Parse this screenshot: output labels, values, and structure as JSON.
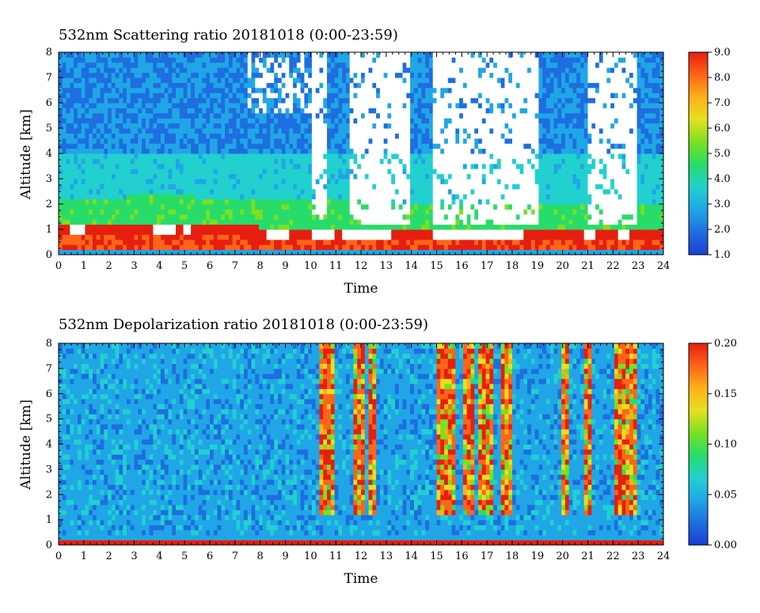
{
  "colors": {
    "scale": [
      "#1a3fd6",
      "#1e6ee0",
      "#20a6e6",
      "#22d0d0",
      "#28dc6a",
      "#7be020",
      "#e6e020",
      "#ffb01a",
      "#ff6418",
      "#e61e10"
    ],
    "saturated": "#ffffff",
    "contour": "#7a5a1e"
  },
  "chart_data": [
    {
      "type": "heatmap",
      "title": "532nm Scattering ratio  20181018 (0:00-23:59)",
      "xlabel": "Time",
      "ylabel": "Altitude [km]",
      "xlim": [
        0,
        24
      ],
      "ylim": [
        0,
        8
      ],
      "x_ticks": [
        "0",
        "1",
        "2",
        "3",
        "4",
        "5",
        "6",
        "7",
        "8",
        "9",
        "10",
        "11",
        "12",
        "13",
        "14",
        "15",
        "16",
        "17",
        "18",
        "19",
        "20",
        "21",
        "22",
        "23",
        "24"
      ],
      "y_ticks": [
        "0",
        "1",
        "2",
        "3",
        "4",
        "5",
        "6",
        "7",
        "8"
      ],
      "colorbar": {
        "min": 1.0,
        "max": 9.0,
        "ticks": [
          "1.0",
          "2.0",
          "3.0",
          "4.0",
          "5.0",
          "6.0",
          "7.0",
          "8.0",
          "9.0"
        ]
      },
      "features": [
        {
          "kind": "boundary_layer_top_km",
          "time_h": [
            0,
            4,
            8,
            10,
            12,
            16,
            20,
            22,
            24
          ],
          "value": [
            1.0,
            1.15,
            1.0,
            0.95,
            0.9,
            0.85,
            0.8,
            0.85,
            0.9
          ]
        },
        {
          "kind": "saturated_cloud_time_h",
          "value": [
            [
              0.4,
              1.0
            ],
            [
              3.8,
              4.6
            ],
            [
              5.0,
              5.3
            ],
            [
              8.2,
              9.2
            ],
            [
              10.0,
              11.0
            ],
            [
              11.3,
              13.2
            ],
            [
              14.8,
              18.4
            ],
            [
              20.8,
              21.3
            ],
            [
              22.2,
              22.6
            ]
          ]
        },
        {
          "kind": "clear_sky_gap_time_h",
          "value": [
            [
              10.0,
              10.6
            ],
            [
              11.5,
              14.0
            ],
            [
              14.8,
              19.0
            ],
            [
              21.0,
              23.0
            ]
          ]
        }
      ]
    },
    {
      "type": "heatmap",
      "title": "532nm Depolarization ratio  20181018 (0:00-23:59)",
      "xlabel": "Time",
      "ylabel": "Altitude [km]",
      "xlim": [
        0,
        24
      ],
      "ylim": [
        0,
        8
      ],
      "x_ticks": [
        "0",
        "1",
        "2",
        "3",
        "4",
        "5",
        "6",
        "7",
        "8",
        "9",
        "10",
        "11",
        "12",
        "13",
        "14",
        "15",
        "16",
        "17",
        "18",
        "19",
        "20",
        "21",
        "22",
        "23",
        "24"
      ],
      "y_ticks": [
        "0",
        "1",
        "2",
        "3",
        "4",
        "5",
        "6",
        "7",
        "8"
      ],
      "colorbar": {
        "min": 0.0,
        "max": 0.2,
        "ticks": [
          "0.00",
          "0.05",
          "0.10",
          "0.15",
          "0.20"
        ]
      },
      "features": [
        {
          "kind": "high_depol_column_time_h",
          "value": [
            [
              10.4,
              10.9
            ],
            [
              11.7,
              12.1
            ],
            [
              12.3,
              12.6
            ],
            [
              15.0,
              15.8
            ],
            [
              16.1,
              16.5
            ],
            [
              16.7,
              17.3
            ],
            [
              17.5,
              18.0
            ],
            [
              19.9,
              20.3
            ],
            [
              20.9,
              21.2
            ],
            [
              22.1,
              22.6
            ],
            [
              22.7,
              23.0
            ]
          ]
        }
      ]
    }
  ]
}
